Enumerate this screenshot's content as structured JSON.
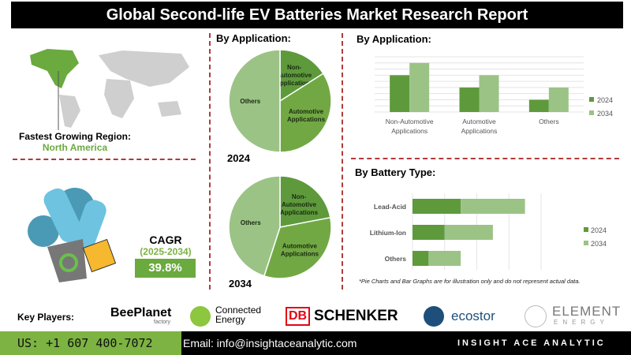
{
  "title": "Global Second-life EV Batteries Market Research Report",
  "region": {
    "label": "Fastest Growing Region:",
    "value": "North America"
  },
  "cagr": {
    "label": "CAGR",
    "period": "(2025-2034)",
    "value": "39.8%"
  },
  "colors": {
    "dark_green": "#5e9a3c",
    "mid_green": "#72a844",
    "light_green": "#9bc386",
    "accent_red": "#b03a3a",
    "phone_bg": "#7cb342"
  },
  "chart_data": [
    {
      "type": "pie",
      "title": "By Application:",
      "caption": "2024",
      "slices": [
        {
          "label": "Non-Automotive Applications",
          "value": 16
        },
        {
          "label": "Automotive Applications",
          "value": 34
        },
        {
          "label": "Others",
          "value": 50
        }
      ]
    },
    {
      "type": "pie",
      "caption": "2034",
      "slices": [
        {
          "label": "Non-Automotive Applications",
          "value": 22
        },
        {
          "label": "Automotive Applications",
          "value": 33
        },
        {
          "label": "Others",
          "value": 45
        }
      ]
    },
    {
      "type": "bar",
      "title": "By Application:",
      "categories": [
        "Non-Automotive Applications",
        "Automotive Applications",
        "Others"
      ],
      "series": [
        {
          "name": "2024",
          "values": [
            6,
            4,
            2
          ]
        },
        {
          "name": "2034",
          "values": [
            8,
            6,
            4
          ]
        }
      ],
      "ylim": [
        0,
        9
      ],
      "grid": true,
      "legend": "right"
    },
    {
      "type": "bar",
      "orientation": "horizontal",
      "stacked": true,
      "title": "By Battery Type:",
      "categories": [
        "Lead-Acid",
        "Lithium-Ion",
        "Others"
      ],
      "series": [
        {
          "name": "2024",
          "values": [
            1.5,
            1.0,
            0.5
          ]
        },
        {
          "name": "2034",
          "values": [
            2.0,
            1.5,
            1.0
          ]
        }
      ],
      "xlim": [
        0,
        4
      ],
      "grid": true,
      "legend": "right"
    }
  ],
  "note": "*Pie Charts and Bar Graphs are for illustration only and do not represent actual data.",
  "key_players": {
    "label": "Key Players:",
    "companies": [
      "BeePlanet",
      "factory",
      "Connected",
      "Energy",
      "DB",
      "SCHENKER",
      "ecostor",
      "ELEMENT",
      "ENERGY"
    ]
  },
  "footer": {
    "phone": "US: +1 607 400-7072",
    "email": "Email: info@insightaceanalytic.com",
    "brand": "INSIGHT ACE ANALYTIC"
  }
}
